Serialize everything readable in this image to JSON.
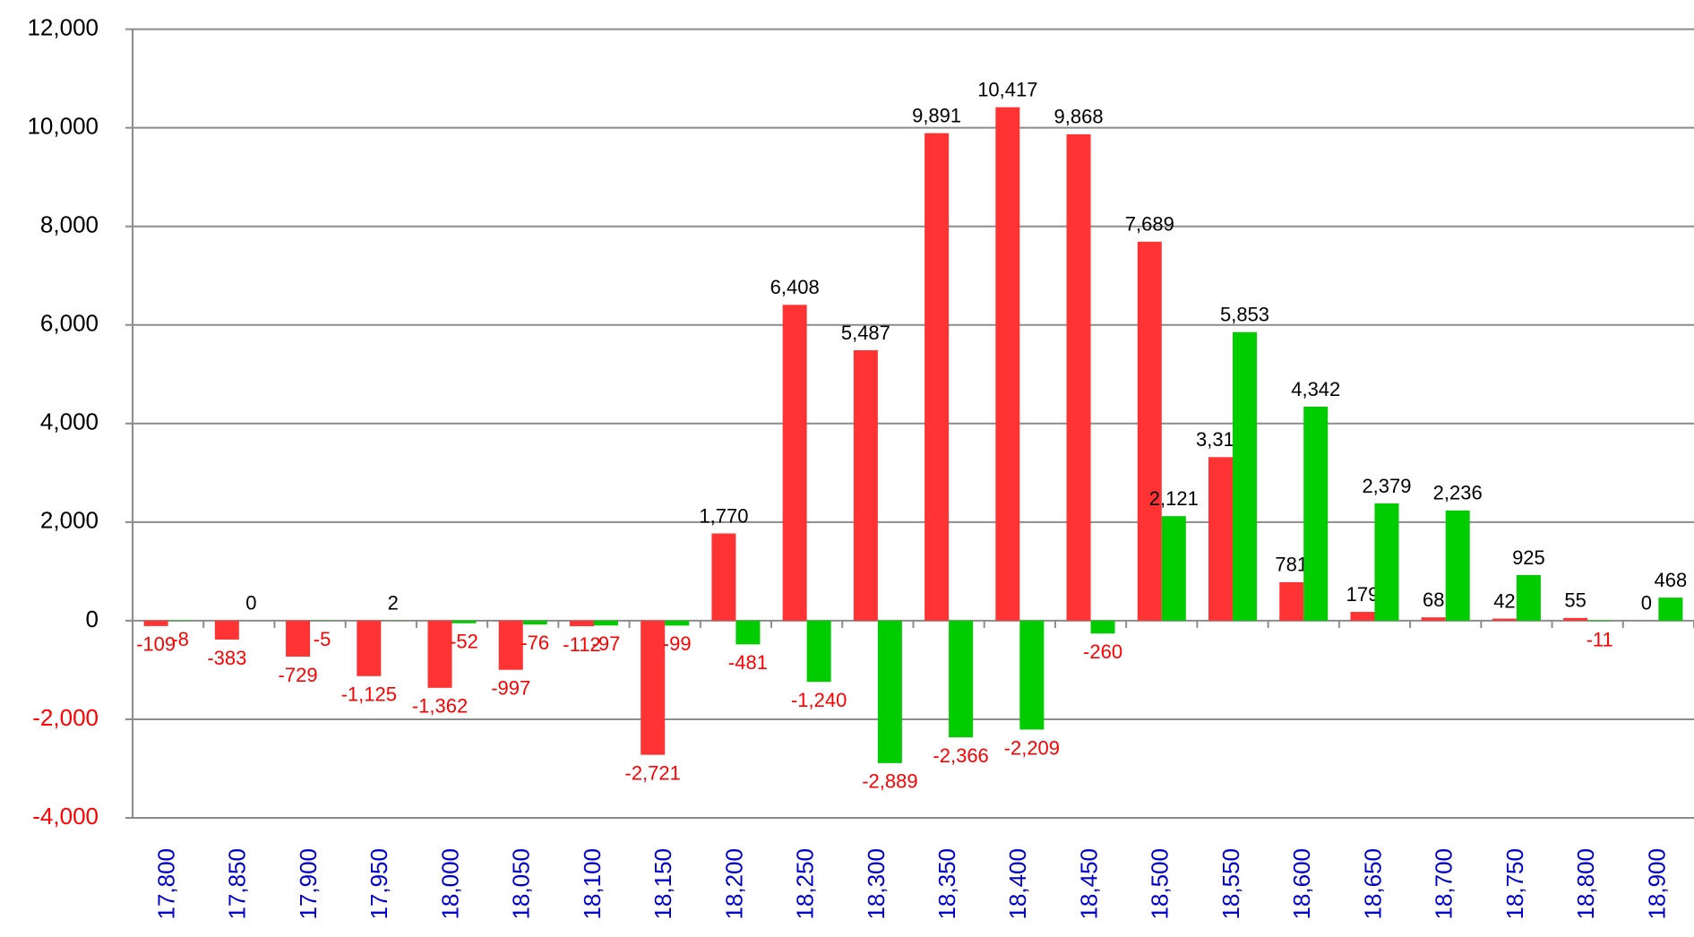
{
  "chart_data": {
    "type": "bar",
    "categories": [
      "17,800",
      "17,850",
      "17,900",
      "17,950",
      "18,000",
      "18,050",
      "18,100",
      "18,150",
      "18,200",
      "18,250",
      "18,300",
      "18,350",
      "18,400",
      "18,450",
      "18,500",
      "18,550",
      "18,600",
      "18,650",
      "18,700",
      "18,750",
      "18,800",
      "18,900"
    ],
    "series": [
      {
        "color": "#ff3333",
        "values": [
          -109,
          -383,
          -729,
          -1125,
          -1362,
          -997,
          -112,
          -2721,
          1770,
          6408,
          5487,
          9891,
          10417,
          9868,
          7689,
          3318,
          781,
          179,
          68,
          42,
          55,
          0
        ],
        "value_labels": [
          "-109",
          "-383",
          "-729",
          "-1,125",
          "-1,362",
          "-997",
          "-112",
          "-2,721",
          "1,770",
          "6,408",
          "5,487",
          "9,891",
          "10,417",
          "9,868",
          "7,689",
          "3,318",
          "781",
          "179",
          "68",
          "42",
          "55",
          "0"
        ]
      },
      {
        "color": "#00cc00",
        "values": [
          -8,
          0,
          -5,
          2,
          -52,
          -76,
          -97,
          -99,
          -481,
          -1240,
          -2889,
          -2366,
          -2209,
          -260,
          2121,
          5853,
          4342,
          2379,
          2236,
          925,
          -11,
          468
        ],
        "value_labels": [
          "-8",
          "0",
          "-5",
          "2",
          "-52",
          "-76",
          "-97",
          "-99",
          "-481",
          "-1,240",
          "-2,889",
          "-2,366",
          "-2,209",
          "-260",
          "2,121",
          "5,853",
          "4,342",
          "2,379",
          "2,236",
          "925",
          "-11",
          "468"
        ]
      }
    ],
    "ylim": [
      -4000,
      12000
    ],
    "yticks": [
      {
        "value": -4000,
        "label": "-4,000"
      },
      {
        "value": -2000,
        "label": "-2,000"
      },
      0,
      {
        "value": 2000,
        "label": "2,000"
      },
      {
        "value": 4000,
        "label": "4,000"
      },
      {
        "value": 6000,
        "label": "6,000"
      },
      {
        "value": 8000,
        "label": "8,000"
      },
      {
        "value": 10000,
        "label": "10,000"
      },
      {
        "value": 12000,
        "label": "12,000"
      }
    ],
    "grid": true,
    "negative_label_color": "#ff0000",
    "category_label_color": "#0000cc"
  }
}
